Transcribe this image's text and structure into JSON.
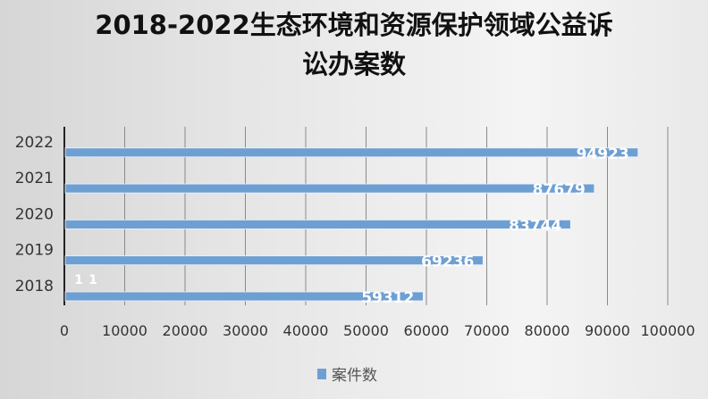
{
  "chart_data": {
    "type": "bar",
    "orientation": "horizontal",
    "title_lines": [
      "2018-2022生态环境和资源保护领域公益诉",
      "讼办案数"
    ],
    "categories": [
      "2018",
      "2019",
      "2020",
      "2021",
      "2022"
    ],
    "series": [
      {
        "name": "案件数",
        "values": [
          59312,
          69236,
          83744,
          87679,
          94923
        ],
        "color": "#6e9fd2"
      }
    ],
    "data_labels": [
      "59312",
      "69236",
      "83744",
      "87679",
      "94923"
    ],
    "annotations": [
      "1",
      "1"
    ],
    "xlim": [
      0,
      100000
    ],
    "x_ticks": [
      "0",
      "10000",
      "20000",
      "30000",
      "40000",
      "50000",
      "60000",
      "70000",
      "80000",
      "90000",
      "100000"
    ],
    "grid": "vertical",
    "legend": "bottom"
  }
}
